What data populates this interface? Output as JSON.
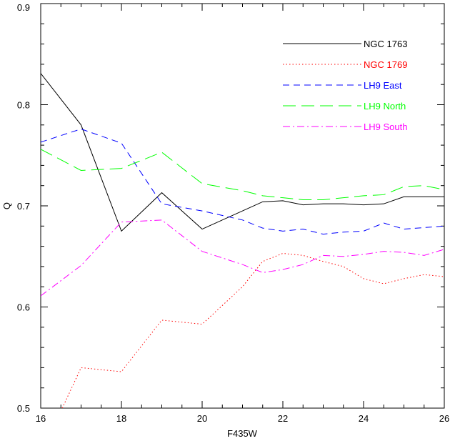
{
  "chart_data": {
    "type": "line",
    "title": "",
    "xlabel": "F435W",
    "ylabel": "Q",
    "xlim": [
      16,
      26
    ],
    "ylim": [
      0.5,
      0.9
    ],
    "x_ticks": [
      16,
      18,
      20,
      22,
      24,
      26
    ],
    "x_tick_labels": [
      "16",
      "18",
      "20",
      "22",
      "24",
      "26"
    ],
    "y_ticks": [
      0.5,
      0.6,
      0.7,
      0.8,
      0.9
    ],
    "y_tick_labels": [
      "0.5",
      "0.6",
      "0.7",
      "0.8",
      "0.9"
    ],
    "grid": false,
    "legend_position": "top-right",
    "series": [
      {
        "name": "NGC 1763",
        "color": "#000000",
        "dash": "solid",
        "points": [
          [
            16,
            0.831
          ],
          [
            17,
            0.78
          ],
          [
            18,
            0.675
          ],
          [
            19,
            0.713
          ],
          [
            20,
            0.677
          ],
          [
            21.5,
            0.704
          ],
          [
            22,
            0.705
          ],
          [
            22.5,
            0.701
          ],
          [
            23,
            0.702
          ],
          [
            23.5,
            0.702
          ],
          [
            24,
            0.701
          ],
          [
            24.5,
            0.702
          ],
          [
            25,
            0.709
          ],
          [
            26,
            0.709
          ]
        ]
      },
      {
        "name": "NGC 1769",
        "color": "#ff0000",
        "dash": "dotted",
        "points": [
          [
            16.5,
            0.497
          ],
          [
            17,
            0.54
          ],
          [
            18,
            0.536
          ],
          [
            19,
            0.587
          ],
          [
            20,
            0.583
          ],
          [
            21,
            0.62
          ],
          [
            21.5,
            0.645
          ],
          [
            22,
            0.653
          ],
          [
            22.5,
            0.651
          ],
          [
            23,
            0.645
          ],
          [
            23.5,
            0.64
          ],
          [
            24,
            0.628
          ],
          [
            24.5,
            0.623
          ],
          [
            25,
            0.628
          ],
          [
            25.5,
            0.632
          ],
          [
            26,
            0.63
          ]
        ]
      },
      {
        "name": "LH9 East",
        "color": "#0000ff",
        "dash": "dashed",
        "points": [
          [
            16,
            0.763
          ],
          [
            17,
            0.776
          ],
          [
            18,
            0.762
          ],
          [
            19,
            0.702
          ],
          [
            20,
            0.695
          ],
          [
            21,
            0.686
          ],
          [
            21.5,
            0.678
          ],
          [
            22,
            0.675
          ],
          [
            22.5,
            0.677
          ],
          [
            23,
            0.672
          ],
          [
            23.5,
            0.674
          ],
          [
            24,
            0.675
          ],
          [
            24.5,
            0.683
          ],
          [
            25,
            0.677
          ],
          [
            26,
            0.68
          ]
        ]
      },
      {
        "name": "LH9 North",
        "color": "#00ff00",
        "dash": "long-dashed",
        "points": [
          [
            16,
            0.756
          ],
          [
            17,
            0.735
          ],
          [
            18,
            0.737
          ],
          [
            19,
            0.753
          ],
          [
            20,
            0.722
          ],
          [
            21,
            0.715
          ],
          [
            21.5,
            0.71
          ],
          [
            22,
            0.708
          ],
          [
            22.5,
            0.706
          ],
          [
            23,
            0.706
          ],
          [
            23.5,
            0.708
          ],
          [
            24,
            0.71
          ],
          [
            24.5,
            0.711
          ],
          [
            25,
            0.719
          ],
          [
            25.5,
            0.72
          ],
          [
            26,
            0.716
          ]
        ]
      },
      {
        "name": "LH9 South",
        "color": "#ff00ff",
        "dash": "dash-dot",
        "points": [
          [
            16,
            0.611
          ],
          [
            17,
            0.641
          ],
          [
            18,
            0.684
          ],
          [
            19,
            0.686
          ],
          [
            20,
            0.655
          ],
          [
            21,
            0.642
          ],
          [
            21.5,
            0.634
          ],
          [
            22,
            0.637
          ],
          [
            22.5,
            0.642
          ],
          [
            23,
            0.651
          ],
          [
            23.5,
            0.65
          ],
          [
            24,
            0.652
          ],
          [
            24.5,
            0.655
          ],
          [
            25,
            0.654
          ],
          [
            25.5,
            0.651
          ],
          [
            26,
            0.657
          ]
        ]
      }
    ]
  }
}
